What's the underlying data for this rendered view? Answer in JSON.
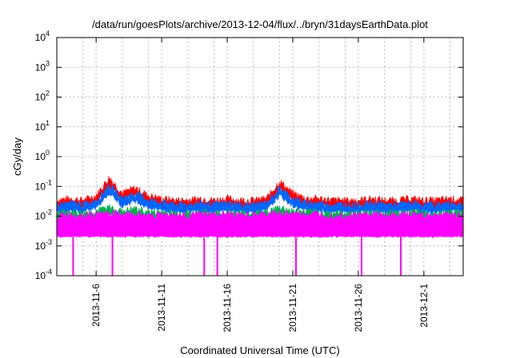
{
  "chart_data": {
    "type": "line",
    "title": "/data/run/goesPlots/archive/2013-12-04/flux/../bryn/31daysEarthData.plot",
    "xlabel": "Coordinated Universal Time (UTC)",
    "ylabel": "cGy/day",
    "y_scale": "log",
    "ylim": [
      0.0001,
      10000
    ],
    "xlim_days_label": [
      "2013-11-03",
      "2013-12-04"
    ],
    "x_tick_labels": [
      "2013-11-6",
      "2013-11-11",
      "2013-11-16",
      "2013-11-21",
      "2013-11-26",
      "2013-12-1"
    ],
    "x_tick_dates": [
      "2013-11-06",
      "2013-11-11",
      "2013-11-16",
      "2013-11-21",
      "2013-11-26",
      "2013-12-01"
    ],
    "y_ticks": [
      {
        "base": "10",
        "exp": "-4"
      },
      {
        "base": "10",
        "exp": "-3"
      },
      {
        "base": "10",
        "exp": "-2"
      },
      {
        "base": "10",
        "exp": "-1"
      },
      {
        "base": "10",
        "exp": "0"
      },
      {
        "base": "10",
        "exp": "1"
      },
      {
        "base": "10",
        "exp": "2"
      },
      {
        "base": "10",
        "exp": "3"
      },
      {
        "base": "10",
        "exp": "4"
      }
    ],
    "grid": true,
    "series": [
      {
        "color": "#ff0000",
        "dates": [
          "2013-11-03",
          "2013-11-04",
          "2013-11-05",
          "2013-11-06",
          "2013-11-07",
          "2013-11-08",
          "2013-11-09",
          "2013-11-10",
          "2013-11-11",
          "2013-11-12",
          "2013-11-13",
          "2013-11-14",
          "2013-11-15",
          "2013-11-16",
          "2013-11-17",
          "2013-11-18",
          "2013-11-19",
          "2013-11-20",
          "2013-11-21",
          "2013-11-22",
          "2013-11-23",
          "2013-11-24",
          "2013-11-25",
          "2013-11-26",
          "2013-11-27",
          "2013-11-28",
          "2013-11-29",
          "2013-11-30",
          "2013-12-01",
          "2013-12-02",
          "2013-12-03",
          "2013-12-04"
        ],
        "values": [
          0.035,
          0.04,
          0.035,
          0.05,
          0.2,
          0.06,
          0.09,
          0.05,
          0.04,
          0.035,
          0.035,
          0.04,
          0.035,
          0.04,
          0.035,
          0.035,
          0.04,
          0.15,
          0.06,
          0.04,
          0.04,
          0.035,
          0.035,
          0.035,
          0.04,
          0.035,
          0.035,
          0.04,
          0.035,
          0.035,
          0.04,
          0.035
        ]
      },
      {
        "color": "#0066ff",
        "dates": [
          "2013-11-03",
          "2013-11-04",
          "2013-11-05",
          "2013-11-06",
          "2013-11-07",
          "2013-11-08",
          "2013-11-09",
          "2013-11-10",
          "2013-11-11",
          "2013-11-12",
          "2013-11-13",
          "2013-11-14",
          "2013-11-15",
          "2013-11-16",
          "2013-11-17",
          "2013-11-18",
          "2013-11-19",
          "2013-11-20",
          "2013-11-21",
          "2013-11-22",
          "2013-11-23",
          "2013-11-24",
          "2013-11-25",
          "2013-11-26",
          "2013-11-27",
          "2013-11-28",
          "2013-11-29",
          "2013-11-30",
          "2013-12-01",
          "2013-12-02",
          "2013-12-03",
          "2013-12-04"
        ],
        "values": [
          0.025,
          0.028,
          0.025,
          0.035,
          0.11,
          0.04,
          0.06,
          0.035,
          0.03,
          0.025,
          0.025,
          0.028,
          0.025,
          0.028,
          0.025,
          0.025,
          0.028,
          0.09,
          0.04,
          0.028,
          0.028,
          0.025,
          0.025,
          0.025,
          0.028,
          0.025,
          0.025,
          0.028,
          0.025,
          0.025,
          0.028,
          0.025
        ]
      },
      {
        "color": "#00b050",
        "dates": [
          "2013-11-03",
          "2013-11-04",
          "2013-11-05",
          "2013-11-06",
          "2013-11-07",
          "2013-11-08",
          "2013-11-09",
          "2013-11-10",
          "2013-11-11",
          "2013-11-12",
          "2013-11-13",
          "2013-11-14",
          "2013-11-15",
          "2013-11-16",
          "2013-11-17",
          "2013-11-18",
          "2013-11-19",
          "2013-11-20",
          "2013-11-21",
          "2013-11-22",
          "2013-11-23",
          "2013-11-24",
          "2013-11-25",
          "2013-11-26",
          "2013-11-27",
          "2013-11-28",
          "2013-11-29",
          "2013-11-30",
          "2013-12-01",
          "2013-12-02",
          "2013-12-03",
          "2013-12-04"
        ],
        "values": [
          0.013,
          0.014,
          0.013,
          0.015,
          0.02,
          0.015,
          0.018,
          0.014,
          0.014,
          0.013,
          0.013,
          0.014,
          0.013,
          0.014,
          0.013,
          0.013,
          0.014,
          0.02,
          0.015,
          0.014,
          0.014,
          0.013,
          0.013,
          0.013,
          0.014,
          0.013,
          0.013,
          0.014,
          0.013,
          0.013,
          0.014,
          0.013
        ]
      },
      {
        "color": "#ff00ff",
        "dates": [
          "2013-11-03",
          "2013-11-04",
          "2013-11-05",
          "2013-11-06",
          "2013-11-07",
          "2013-11-08",
          "2013-11-09",
          "2013-11-10",
          "2013-11-11",
          "2013-11-12",
          "2013-11-13",
          "2013-11-14",
          "2013-11-15",
          "2013-11-16",
          "2013-11-17",
          "2013-11-18",
          "2013-11-19",
          "2013-11-20",
          "2013-11-21",
          "2013-11-22",
          "2013-11-23",
          "2013-11-24",
          "2013-11-25",
          "2013-11-26",
          "2013-11-27",
          "2013-11-28",
          "2013-11-29",
          "2013-11-30",
          "2013-12-01",
          "2013-12-02",
          "2013-12-03",
          "2013-12-04"
        ],
        "values": [
          0.01,
          0.012,
          0.011,
          0.012,
          0.013,
          0.012,
          0.012,
          0.011,
          0.012,
          0.011,
          0.011,
          0.012,
          0.011,
          0.012,
          0.011,
          0.011,
          0.012,
          0.013,
          0.012,
          0.012,
          0.012,
          0.011,
          0.011,
          0.011,
          0.012,
          0.011,
          0.011,
          0.012,
          0.011,
          0.011,
          0.012,
          0.011
        ],
        "floor": 0.002,
        "dropouts": [
          "2013-11-04",
          "2013-11-07",
          "2013-11-14",
          "2013-11-15",
          "2013-11-21",
          "2013-11-26",
          "2013-11-29"
        ]
      }
    ]
  }
}
